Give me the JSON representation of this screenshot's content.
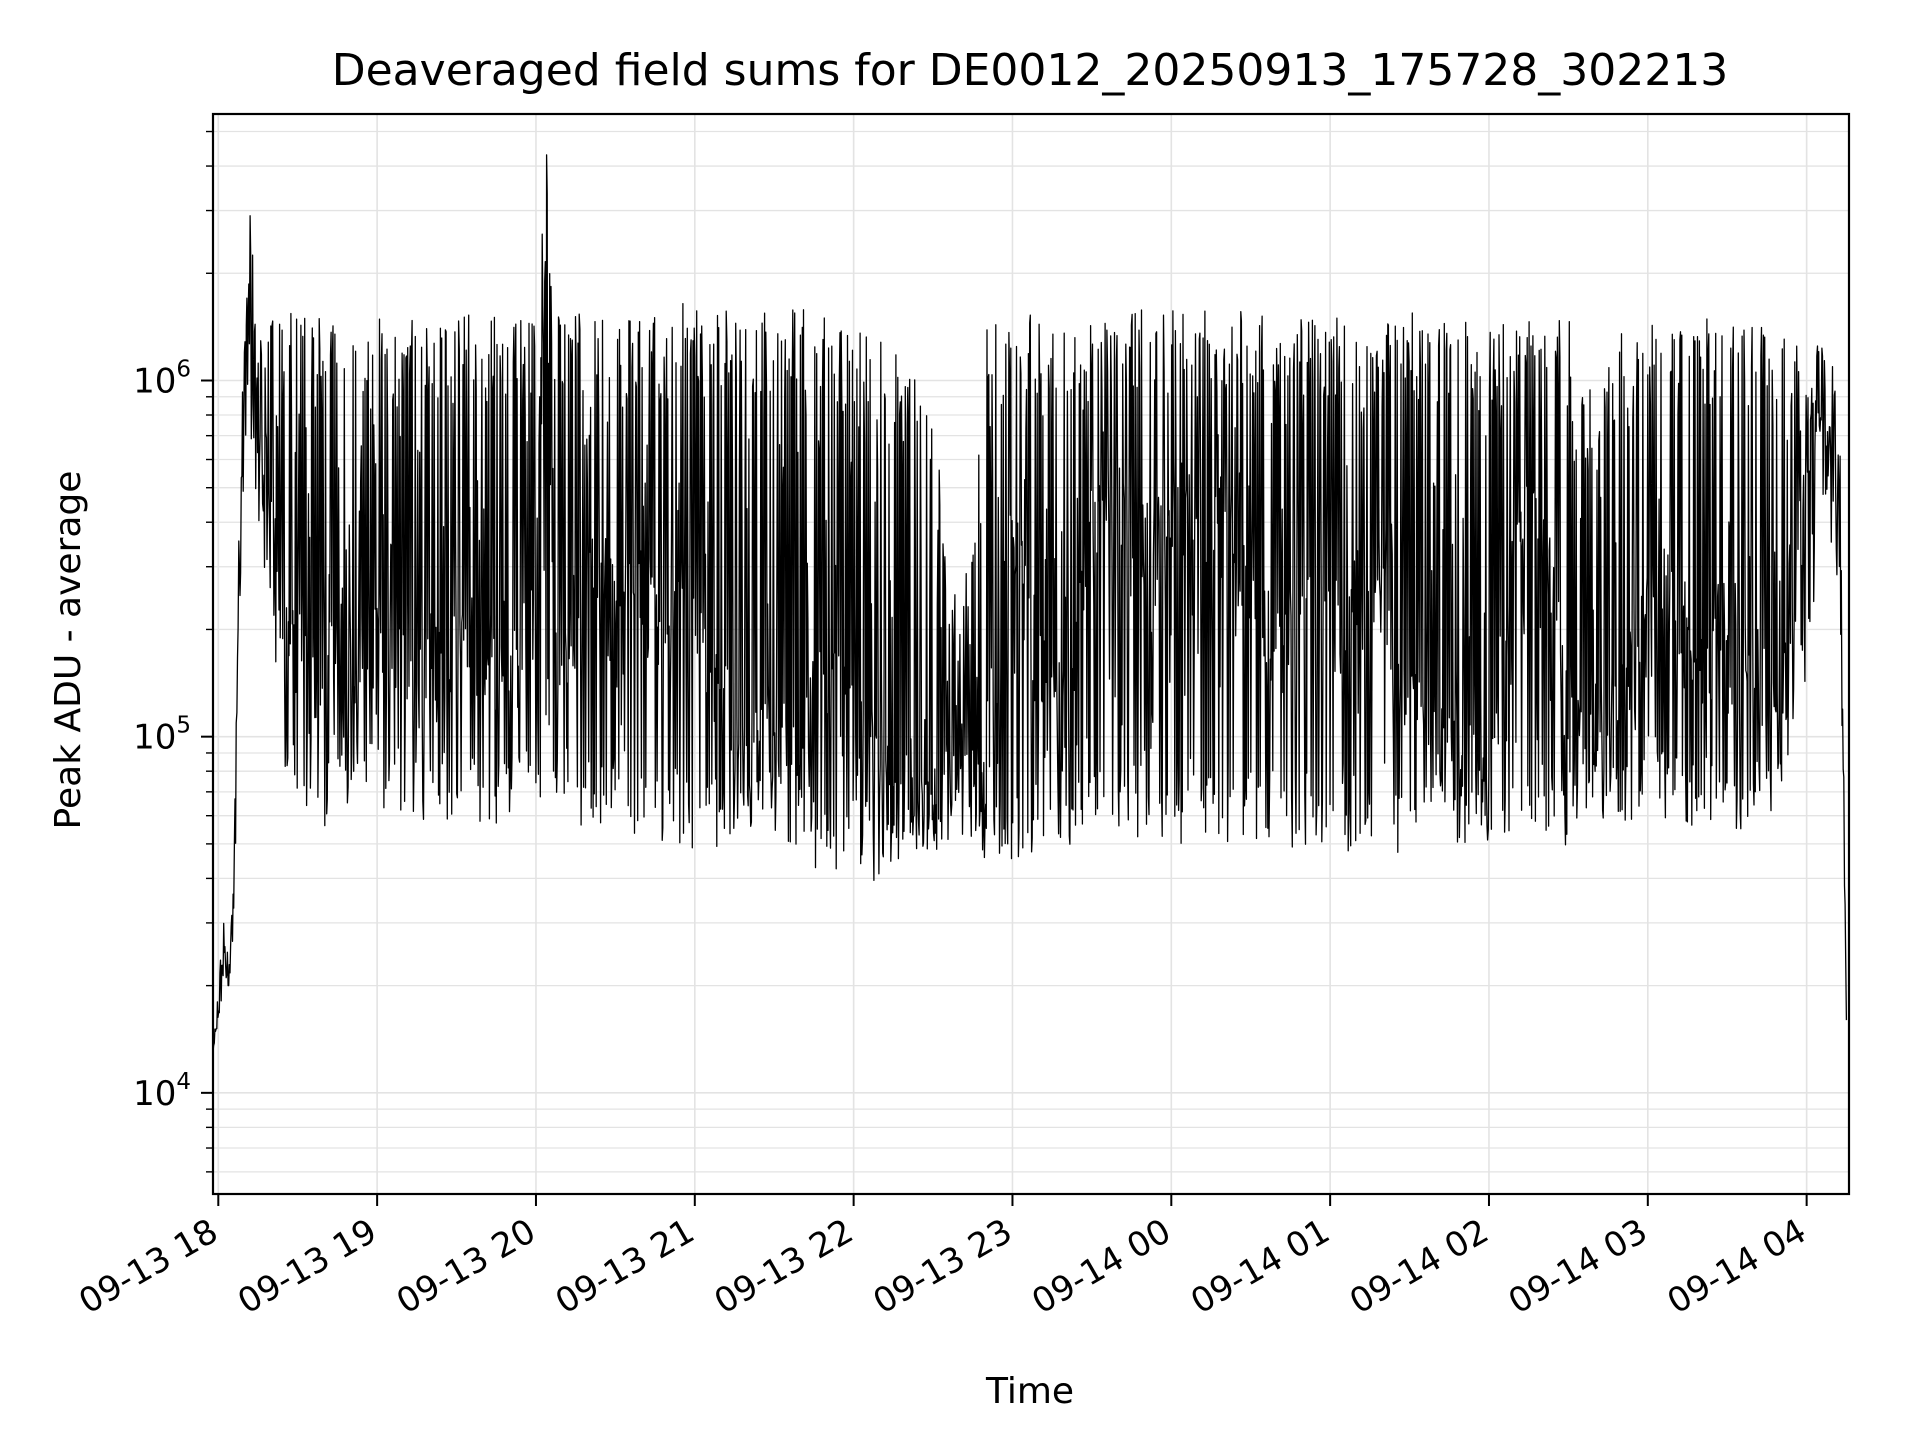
{
  "chart_data": {
    "type": "line",
    "title": "Deaveraged field sums for DE0012_20250913_175728_302213",
    "xlabel": "Time",
    "ylabel": "Peak ADU - average",
    "yscale": "log",
    "ylim": [
      5200,
      5600000
    ],
    "xlim": [
      "09-13 17:58",
      "09-14 04:16"
    ],
    "grid": true,
    "x_ticks": [
      "09-13 18",
      "09-13 19",
      "09-13 20",
      "09-13 21",
      "09-13 22",
      "09-13 23",
      "09-14 00",
      "09-14 01",
      "09-14 02",
      "09-14 03",
      "09-14 04"
    ],
    "y_ticks": [
      {
        "value": 10000,
        "base": "10",
        "exp": "4"
      },
      {
        "value": 100000,
        "base": "10",
        "exp": "5"
      },
      {
        "value": 1000000,
        "base": "10",
        "exp": "6"
      }
    ],
    "line_color": "#000000",
    "grid_color": "#e3e3e3",
    "series": [
      {
        "x": [
          "09-13 17:58",
          "09-13 18:02",
          "09-13 18:04",
          "09-13 18:06",
          "09-13 18:08",
          "09-13 18:10",
          "09-13 18:12",
          "09-13 18:15",
          "09-13 18:20",
          "09-13 18:25",
          "09-13 18:30",
          "09-13 18:35",
          "09-13 18:40",
          "09-13 18:45",
          "09-13 18:50",
          "09-13 18:55",
          "09-13 19:00",
          "09-13 19:10",
          "09-13 19:20",
          "09-13 19:30",
          "09-13 19:40",
          "09-13 19:50",
          "09-13 20:00",
          "09-13 20:04",
          "09-13 20:06",
          "09-13 20:10",
          "09-13 20:20",
          "09-13 20:30",
          "09-13 20:40",
          "09-13 20:50",
          "09-13 21:00",
          "09-13 21:10",
          "09-13 21:20",
          "09-13 21:30",
          "09-13 21:40",
          "09-13 21:50",
          "09-13 22:00",
          "09-13 22:10",
          "09-13 22:20",
          "09-13 22:30",
          "09-13 22:40",
          "09-13 22:50",
          "09-13 23:00",
          "09-13 23:10",
          "09-13 23:20",
          "09-13 23:30",
          "09-13 23:40",
          "09-13 23:50",
          "09-14 00:00",
          "09-14 00:10",
          "09-14 00:20",
          "09-14 00:30",
          "09-14 00:40",
          "09-14 00:50",
          "09-14 01:00",
          "09-14 01:10",
          "09-14 01:20",
          "09-14 01:30",
          "09-14 01:40",
          "09-14 01:50",
          "09-14 02:00",
          "09-14 02:10",
          "09-14 02:20",
          "09-14 02:30",
          "09-14 02:40",
          "09-14 02:50",
          "09-14 03:00",
          "09-14 03:10",
          "09-14 03:20",
          "09-14 03:30",
          "09-14 03:40",
          "09-14 03:50",
          "09-14 04:00",
          "09-14 04:05",
          "09-14 04:10",
          "09-14 04:13",
          "09-14 04:15"
        ],
        "y": [
          13000,
          25000,
          20000,
          40000,
          300000,
          1000000,
          2900000,
          900000,
          500000,
          200000,
          180000,
          130000,
          160000,
          200000,
          150000,
          170000,
          180000,
          160000,
          150000,
          170000,
          140000,
          180000,
          250000,
          4300000,
          250000,
          160000,
          280000,
          300000,
          260000,
          220000,
          210000,
          130000,
          90000,
          110000,
          100000,
          150000,
          110000,
          80000,
          70000,
          65000,
          80000,
          90000,
          380000,
          150000,
          120000,
          450000,
          460000,
          220000,
          480000,
          420000,
          380000,
          270000,
          190000,
          230000,
          250000,
          230000,
          240000,
          140000,
          95000,
          90000,
          75000,
          380000,
          480000,
          110000,
          90000,
          120000,
          300000,
          240000,
          180000,
          160000,
          170000,
          100000,
          550000,
          1100000,
          600000,
          300000,
          16000
        ],
        "band_low": [
          13000,
          20000,
          20000,
          30000,
          200000,
          700000,
          700000,
          400000,
          200000,
          60000,
          60000,
          55000,
          55000,
          60000,
          60000,
          60000,
          60000,
          60000,
          58000,
          58000,
          55000,
          55000,
          60000,
          60000,
          65000,
          60000,
          55000,
          55000,
          50000,
          50000,
          48000,
          48000,
          50000,
          55000,
          45000,
          40000,
          42000,
          38000,
          45000,
          48000,
          50000,
          45000,
          45000,
          48000,
          48000,
          50000,
          52000,
          52000,
          48000,
          50000,
          48000,
          52000,
          50000,
          48000,
          42000,
          50000,
          45000,
          45000,
          48000,
          50000,
          48000,
          52000,
          55000,
          48000,
          55000,
          55000,
          60000,
          55000,
          55000,
          55000,
          55000,
          60000,
          150000,
          350000,
          350000,
          150000,
          16000
        ],
        "band_high": [
          13000,
          30000,
          25000,
          60000,
          600000,
          1500000,
          2900000,
          1300000,
          1500000,
          1500000,
          1600000,
          1500000,
          1600000,
          1500000,
          1500000,
          1500000,
          1500000,
          1500000,
          1600000,
          1500000,
          1600000,
          1500000,
          1500000,
          4300000,
          1600000,
          1600000,
          1500000,
          1500000,
          1600000,
          1600000,
          1700000,
          1600000,
          1500000,
          1600000,
          1700000,
          1500000,
          1400000,
          1300000,
          1200000,
          800000,
          200000,
          1400000,
          1500000,
          1600000,
          1500000,
          1500000,
          1500000,
          1600000,
          1600000,
          1600000,
          1600000,
          1600000,
          1500000,
          1500000,
          1500000,
          1500000,
          1500000,
          1600000,
          1500000,
          1500000,
          1400000,
          1500000,
          1500000,
          1500000,
          900000,
          1400000,
          1500000,
          1500000,
          1500000,
          1500000,
          1500000,
          1400000,
          1200000,
          1300000,
          1100000,
          600000,
          16000
        ]
      }
    ]
  }
}
